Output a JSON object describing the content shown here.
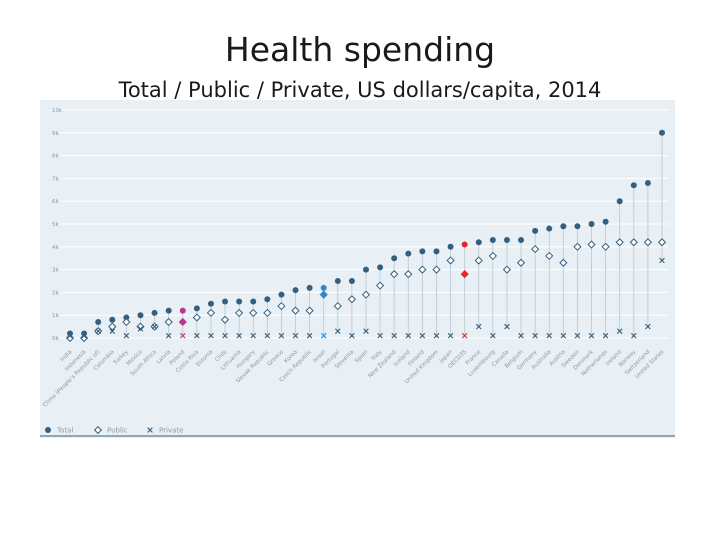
{
  "page": {
    "title": "Health spending",
    "subtitle": "Total / Public / Private, US dollars/capita, 2014"
  },
  "colors": {
    "panel_bg": "#e8f0f5",
    "grid": "#ffffff",
    "total": "#355f7f",
    "public": "#355f7f",
    "private": "#355f7f",
    "highlight_magenta": "#c0338a",
    "highlight_blue": "#2f86c8",
    "highlight_red": "#e8262a",
    "axis_text": "#8d98a2",
    "underline": "#355f7f"
  },
  "chart_data": {
    "type": "scatter",
    "ylabel": "",
    "ylim": [
      0,
      10
    ],
    "yticks": [
      "0k",
      "1k",
      "2k",
      "3k",
      "4k",
      "5k",
      "6k",
      "7k",
      "8k",
      "9k",
      "10k"
    ],
    "categories": [
      "India",
      "Indonesia",
      "China (People's Republic of)",
      "Colombia",
      "Turkey",
      "Mexico",
      "South Africa",
      "Latvia",
      "Poland",
      "Costa Rica",
      "Estonia",
      "Chile",
      "Lithuania",
      "Hungary",
      "Slovak Republic",
      "Greece",
      "Korea",
      "Czech Republic",
      "Israel",
      "Portugal",
      "Slovenia",
      "Spain",
      "Italy",
      "New Zealand",
      "Iceland",
      "Finland",
      "United Kingdom",
      "Japan",
      "OECD35",
      "France",
      "Luxembourg",
      "Canada",
      "Belgium",
      "Germany",
      "Australia",
      "Austria",
      "Sweden",
      "Denmark",
      "Netherlands",
      "Ireland",
      "Norway",
      "Switzerland",
      "United States"
    ],
    "series": [
      {
        "name": "Total",
        "marker": "circle",
        "values": [
          0.2,
          0.2,
          0.7,
          0.8,
          0.9,
          1.0,
          1.1,
          1.2,
          1.2,
          1.3,
          1.5,
          1.6,
          1.6,
          1.6,
          1.7,
          1.9,
          2.1,
          2.2,
          2.2,
          2.5,
          2.5,
          3.0,
          3.1,
          3.5,
          3.7,
          3.8,
          3.8,
          4.0,
          4.1,
          4.2,
          4.3,
          4.3,
          4.3,
          4.7,
          4.8,
          4.9,
          4.9,
          5.0,
          5.1,
          6.0,
          6.7,
          6.8,
          9.0
        ]
      },
      {
        "name": "Public",
        "marker": "diamond",
        "values": [
          0.0,
          0.0,
          0.3,
          0.5,
          0.7,
          0.5,
          0.5,
          0.7,
          0.7,
          0.9,
          1.1,
          0.8,
          1.1,
          1.1,
          1.1,
          1.4,
          1.2,
          1.2,
          1.9,
          1.4,
          1.7,
          1.9,
          2.3,
          2.8,
          2.8,
          3.0,
          3.0,
          3.4,
          2.8,
          3.4,
          3.6,
          3.0,
          3.3,
          3.9,
          3.6,
          3.3,
          4.0,
          4.1,
          4.0,
          4.2,
          4.2,
          4.2,
          4.2
        ]
      },
      {
        "name": "Private",
        "marker": "x",
        "values": [
          0.1,
          0.1,
          0.3,
          0.3,
          0.1,
          0.4,
          0.5,
          0.1,
          0.1,
          0.1,
          0.1,
          0.1,
          0.1,
          0.1,
          0.1,
          0.1,
          0.1,
          0.1,
          0.1,
          0.3,
          0.1,
          0.3,
          0.1,
          0.1,
          0.1,
          0.1,
          0.1,
          0.1,
          0.1,
          0.5,
          0.1,
          0.5,
          0.1,
          0.1,
          0.1,
          0.1,
          0.1,
          0.1,
          0.1,
          0.3,
          0.1,
          0.5,
          3.4
        ]
      }
    ],
    "highlights": [
      {
        "category": "Poland",
        "color_key": "highlight_magenta"
      },
      {
        "category": "Israel",
        "color_key": "highlight_blue"
      },
      {
        "category": "OECD35",
        "color_key": "highlight_red"
      }
    ],
    "grid": true,
    "legend_position": "bottom-left",
    "legend": [
      "Total",
      "Public",
      "Private"
    ]
  }
}
